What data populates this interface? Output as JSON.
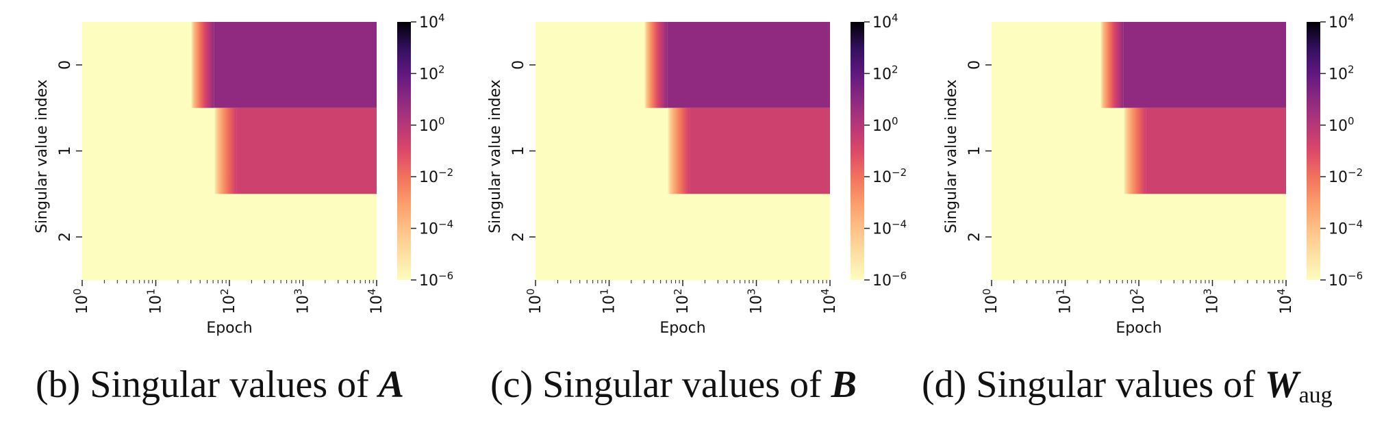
{
  "colors": {
    "cmap": "magma_r",
    "low": "#fcfcbe",
    "high": "#000004"
  },
  "chart_data": [
    {
      "type": "heatmap",
      "caption": "(b) Singular values of ",
      "caption_math": "A",
      "caption_sub": "",
      "xlabel": "Epoch",
      "ylabel": "Singular value index",
      "xscale": "log",
      "xlim": [
        1,
        10000
      ],
      "x_ticks": [
        "0",
        "1",
        "2",
        "3",
        "4"
      ],
      "y_ticks": [
        "0",
        "1",
        "2"
      ],
      "colorbar": {
        "scale": "log",
        "range": [
          1e-06,
          10000.0
        ],
        "ticks": [
          "4",
          "2",
          "0",
          "−2",
          "−4",
          "−6"
        ]
      },
      "rows": [
        {
          "index": 0,
          "onset_epoch": 30,
          "transition_end_epoch": 62,
          "log10_value_before": -6,
          "log10_value_after": 0.9
        },
        {
          "index": 1,
          "onset_epoch": 62,
          "transition_end_epoch": 125,
          "log10_value_before": -6,
          "log10_value_after": -0.6
        },
        {
          "index": 2,
          "onset_epoch": null,
          "transition_end_epoch": null,
          "log10_value_before": -6,
          "log10_value_after": -6
        }
      ]
    },
    {
      "type": "heatmap",
      "caption": "(c) Singular values of ",
      "caption_math": "B",
      "caption_sub": "",
      "xlabel": "Epoch",
      "ylabel": "Singular value index",
      "xscale": "log",
      "xlim": [
        1,
        10000
      ],
      "x_ticks": [
        "0",
        "1",
        "2",
        "3",
        "4"
      ],
      "y_ticks": [
        "0",
        "1",
        "2"
      ],
      "colorbar": {
        "scale": "log",
        "range": [
          1e-06,
          10000.0
        ],
        "ticks": [
          "4",
          "2",
          "0",
          "−2",
          "−4",
          "−6"
        ]
      },
      "rows": [
        {
          "index": 0,
          "onset_epoch": 30,
          "transition_end_epoch": 62,
          "log10_value_before": -6,
          "log10_value_after": 0.9
        },
        {
          "index": 1,
          "onset_epoch": 62,
          "transition_end_epoch": 125,
          "log10_value_before": -6,
          "log10_value_after": -0.6
        },
        {
          "index": 2,
          "onset_epoch": null,
          "transition_end_epoch": null,
          "log10_value_before": -6,
          "log10_value_after": -6
        }
      ]
    },
    {
      "type": "heatmap",
      "caption": "(d) Singular values of ",
      "caption_math": "W",
      "caption_sub": "aug",
      "xlabel": "Epoch",
      "ylabel": "Singular value index",
      "xscale": "log",
      "xlim": [
        1,
        10000
      ],
      "x_ticks": [
        "0",
        "1",
        "2",
        "3",
        "4"
      ],
      "y_ticks": [
        "0",
        "1",
        "2"
      ],
      "colorbar": {
        "scale": "log",
        "range": [
          1e-06,
          10000.0
        ],
        "ticks": [
          "4",
          "2",
          "0",
          "−2",
          "−4",
          "−6"
        ]
      },
      "rows": [
        {
          "index": 0,
          "onset_epoch": 30,
          "transition_end_epoch": 62,
          "log10_value_before": -6,
          "log10_value_after": 0.9
        },
        {
          "index": 1,
          "onset_epoch": 62,
          "transition_end_epoch": 125,
          "log10_value_before": -6,
          "log10_value_after": -0.6
        },
        {
          "index": 2,
          "onset_epoch": null,
          "transition_end_epoch": null,
          "log10_value_before": -6,
          "log10_value_after": -6
        }
      ]
    }
  ]
}
